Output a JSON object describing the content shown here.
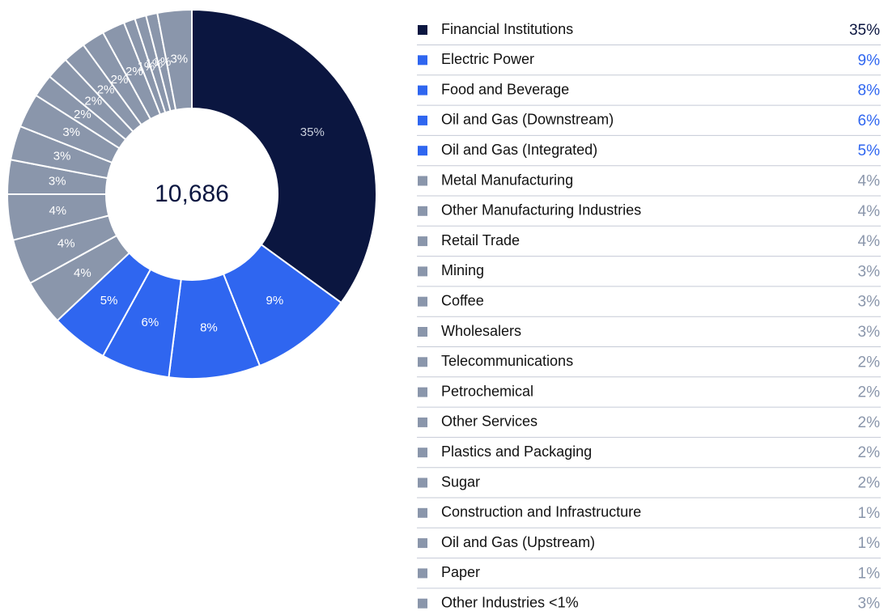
{
  "chart_data": {
    "type": "donut",
    "center_text": "10,686",
    "categories": [
      "Financial Institutions",
      "Electric Power",
      "Food and Beverage",
      "Oil and Gas (Downstream)",
      "Oil and Gas (Integrated)",
      "Metal Manufacturing",
      "Other Manufacturing Industries",
      "Retail Trade",
      "Mining",
      "Coffee",
      "Wholesalers",
      "Telecommunications",
      "Petrochemical",
      "Other Services",
      "Plastics and Packaging",
      "Sugar",
      "Construction and Infrastructure",
      "Oil and Gas (Upstream)",
      "Paper",
      "Other Industries <1%"
    ],
    "values": [
      35,
      9,
      8,
      6,
      5,
      4,
      4,
      4,
      3,
      3,
      3,
      2,
      2,
      2,
      2,
      2,
      1,
      1,
      1,
      3
    ],
    "value_labels": [
      "35%",
      "9%",
      "8%",
      "6%",
      "5%",
      "4%",
      "4%",
      "4%",
      "3%",
      "3%",
      "3%",
      "2%",
      "2%",
      "2%",
      "2%",
      "2%",
      "1%",
      "1%",
      "1%",
      "3%"
    ],
    "colors": [
      "#0b1640",
      "#2f66f0",
      "#2f66f0",
      "#2f66f0",
      "#2f66f0",
      "#8a96ab",
      "#8a96ab",
      "#8a96ab",
      "#8a96ab",
      "#8a96ab",
      "#8a96ab",
      "#8a96ab",
      "#8a96ab",
      "#8a96ab",
      "#8a96ab",
      "#8a96ab",
      "#8a96ab",
      "#8a96ab",
      "#8a96ab",
      "#8a96ab"
    ]
  }
}
